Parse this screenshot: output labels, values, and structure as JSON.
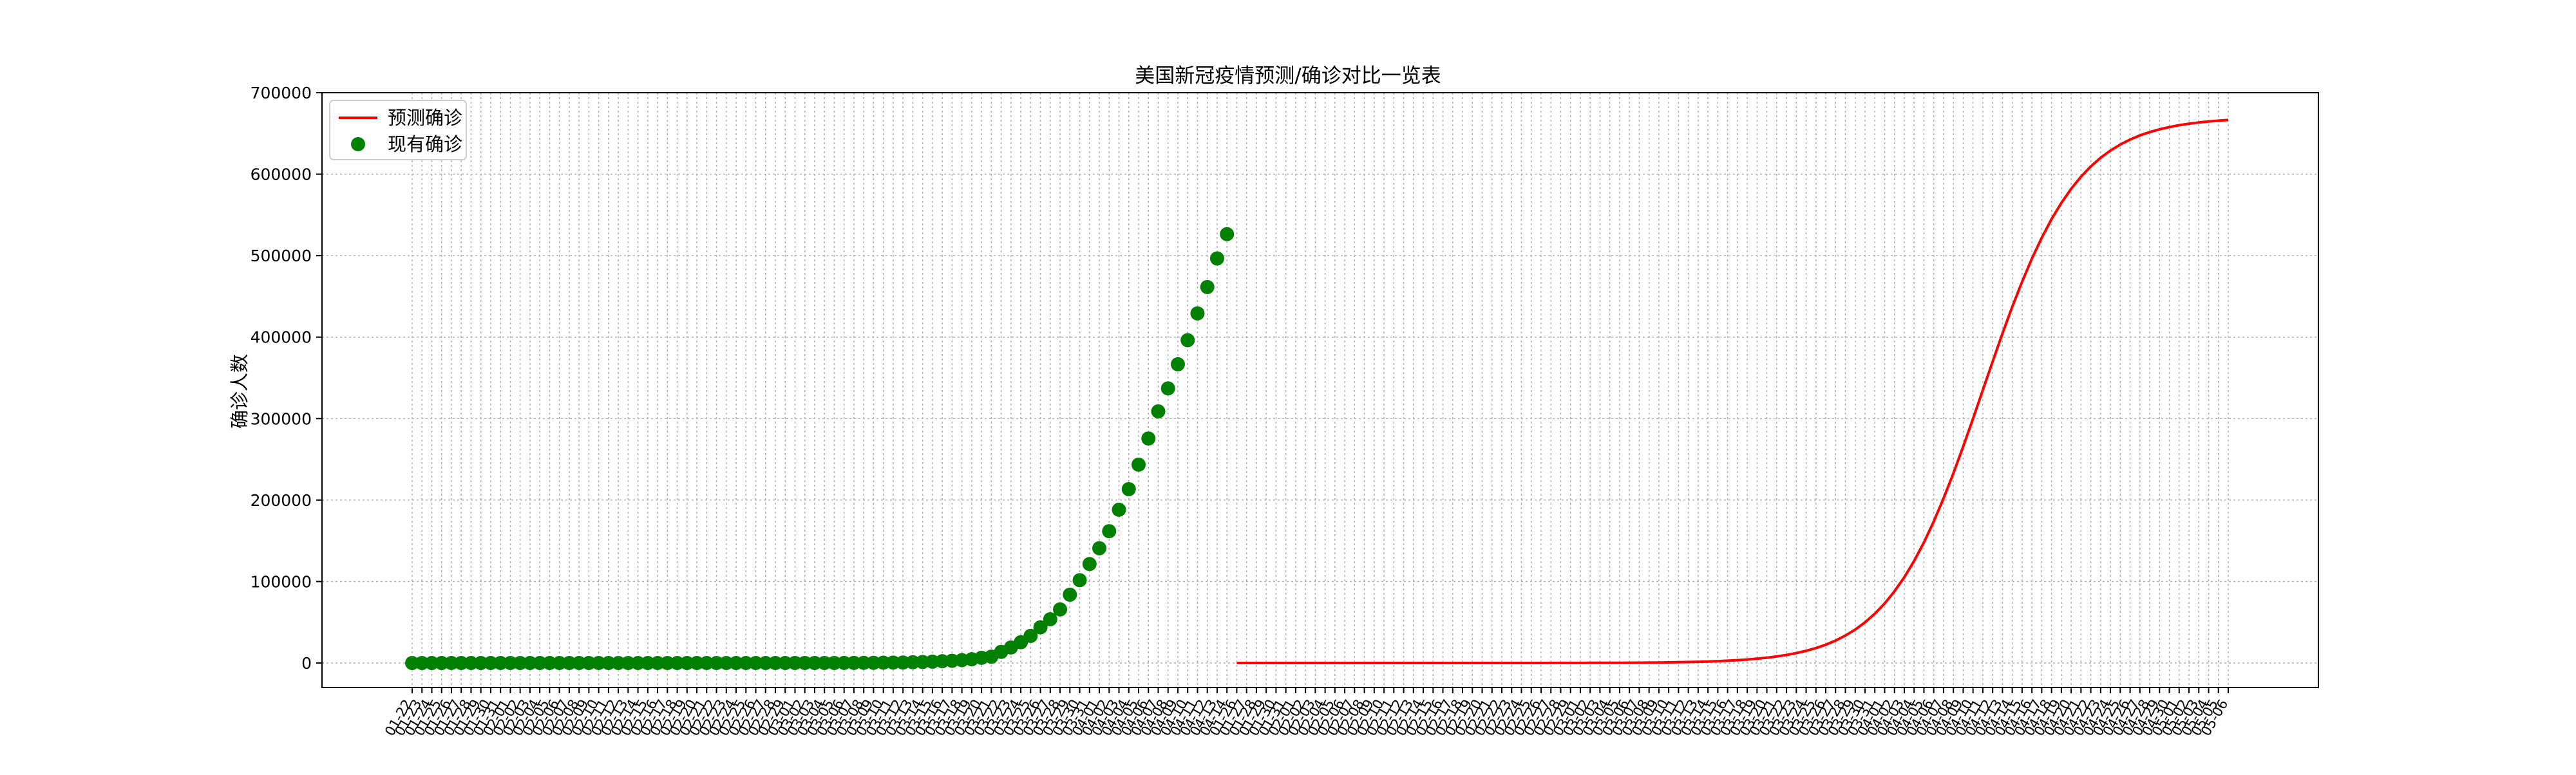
{
  "chart_data": {
    "type": "line",
    "title": "美国新冠疫情预测/确诊对比一览表",
    "ylabel": "确诊人数",
    "xlabel": "",
    "ylim": [
      -30000,
      700000
    ],
    "yticks": [
      0,
      100000,
      200000,
      300000,
      400000,
      500000,
      600000,
      700000
    ],
    "ytick_labels": [
      "0",
      "100000",
      "200000",
      "300000",
      "400000",
      "500000",
      "600000",
      "700000"
    ],
    "grid": true,
    "legend_position": "top-left",
    "series": [
      {
        "name": "预测确诊",
        "kind": "line",
        "color": "#ff0000",
        "x_start": "01-26",
        "x_end": "05-06",
        "logistic": {
          "K": 670000,
          "midpoint": "04-11",
          "rate": 0.21
        }
      },
      {
        "name": "现有确诊",
        "kind": "scatter",
        "color": "#008000",
        "x_start": "01-22",
        "x_end": "04-14",
        "values": [
          1,
          1,
          2,
          2,
          5,
          5,
          5,
          5,
          6,
          7,
          8,
          11,
          11,
          11,
          12,
          12,
          12,
          12,
          12,
          13,
          13,
          14,
          14,
          14,
          14,
          14,
          14,
          14,
          14,
          15,
          15,
          15,
          15,
          15,
          15,
          15,
          35,
          35,
          35,
          53,
          57,
          60,
          62,
          70,
          106,
          149,
          217,
          262,
          402,
          518,
          583,
          959,
          1281,
          1663,
          2179,
          2726,
          3499,
          4632,
          6421,
          7786,
          13680,
          19101,
          25493,
          33276,
          43847,
          53740,
          65778,
          83836,
          101657,
          121478,
          140886,
          161807,
          188172,
          213372,
          243453,
          275586,
          308850,
          337072,
          366667,
          396223,
          429052,
          461437,
          496535,
          526396
        ]
      }
    ]
  }
}
